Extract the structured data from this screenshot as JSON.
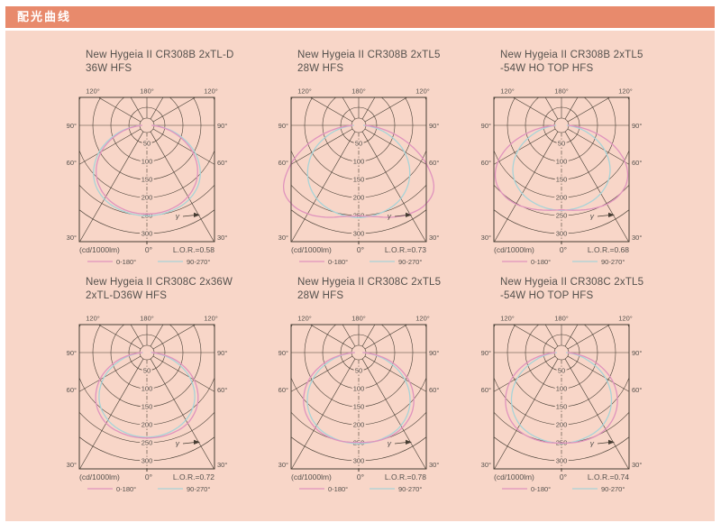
{
  "header": {
    "title": "配光曲线"
  },
  "colors": {
    "page_bg": "#f8d6c8",
    "header_bg": "#e88a6c",
    "header_text": "#ffffff",
    "grid": "#463d33",
    "text": "#55514d",
    "curve_pink": "#e093bd",
    "curve_cyan": "#a8d4d8"
  },
  "common": {
    "unit_label": "(cd/1000lm)",
    "nadir_label": "0°",
    "gamma_symbol": "γ",
    "angle_labels_top": [
      "120°",
      "180°",
      "120°"
    ],
    "angle_labels_sides": [
      "90°",
      "60°",
      "30°"
    ],
    "radial_ticks": [
      50,
      100,
      150,
      200,
      250,
      300
    ],
    "legend": [
      {
        "label": "0-180°",
        "color": "pink"
      },
      {
        "label": "90-270°",
        "color": "cyan"
      }
    ]
  },
  "chart_data": [
    {
      "type": "polar",
      "title_line1": "New Hygeia II CR308B 2xTL-D",
      "title_line2": "36W HFS",
      "lor_label": "L.O.R.=0.58",
      "lor": 0.58,
      "radial_unit": "cd/1000lm",
      "radial_range": [
        0,
        300
      ],
      "series": [
        {
          "name": "0-180°",
          "color": "pink",
          "gamma_deg": [
            0,
            15,
            30,
            45,
            60,
            75,
            90
          ],
          "values": [
            246,
            242,
            228,
            198,
            146,
            76,
            14
          ]
        },
        {
          "name": "90-270°",
          "color": "cyan",
          "gamma_deg": [
            0,
            15,
            30,
            45,
            60,
            75,
            90
          ],
          "values": [
            251,
            247,
            236,
            208,
            155,
            84,
            16
          ]
        }
      ]
    },
    {
      "type": "polar",
      "title_line1": "New Hygeia II CR308B 2xTL5",
      "title_line2": "28W HFS",
      "lor_label": "L.O.R.=0.73",
      "lor": 0.73,
      "radial_unit": "cd/1000lm",
      "radial_range": [
        0,
        300
      ],
      "series": [
        {
          "name": "0-180°",
          "color": "pink",
          "gamma_deg": [
            0,
            10,
            20,
            30,
            40,
            50,
            60,
            70,
            80,
            90
          ],
          "values": [
            251,
            257,
            271,
            283,
            287,
            272,
            218,
            148,
            75,
            18
          ]
        },
        {
          "name": "90-270°",
          "color": "cyan",
          "gamma_deg": [
            0,
            15,
            30,
            45,
            60,
            75,
            90
          ],
          "values": [
            256,
            250,
            234,
            200,
            146,
            76,
            14
          ]
        }
      ]
    },
    {
      "type": "polar",
      "title_line1": "New Hygeia II CR308B 2xTL5",
      "title_line2": "-54W HO TOP HFS",
      "lor_label": "L.O.R.=0.68",
      "lor": 0.68,
      "radial_unit": "cd/1000lm",
      "radial_range": [
        0,
        300
      ],
      "series": [
        {
          "name": "0-180°",
          "color": "pink",
          "gamma_deg": [
            0,
            10,
            20,
            30,
            40,
            50,
            60,
            70,
            80,
            90
          ],
          "values": [
            234,
            239,
            246,
            252,
            251,
            238,
            204,
            148,
            78,
            20
          ]
        },
        {
          "name": "90-270°",
          "color": "cyan",
          "gamma_deg": [
            0,
            15,
            30,
            45,
            60,
            75,
            90
          ],
          "values": [
            236,
            231,
            218,
            190,
            139,
            73,
            16
          ]
        }
      ]
    },
    {
      "type": "polar",
      "title_line1": "New Hygeia II CR308C 2x36W",
      "title_line2": "2xTL-D36W HFS",
      "lor_label": "L.O.R.=0.72",
      "lor": 0.72,
      "radial_unit": "cd/1000lm",
      "radial_range": [
        0,
        300
      ],
      "series": [
        {
          "name": "0-180°",
          "color": "pink",
          "gamma_deg": [
            0,
            15,
            30,
            45,
            60,
            75,
            90
          ],
          "values": [
            237,
            235,
            226,
            199,
            151,
            84,
            14
          ]
        },
        {
          "name": "90-270°",
          "color": "cyan",
          "gamma_deg": [
            0,
            15,
            30,
            45,
            60,
            75,
            90
          ],
          "values": [
            235,
            230,
            216,
            187,
            137,
            71,
            12
          ]
        }
      ]
    },
    {
      "type": "polar",
      "title_line1": "New Hygeia II CR308C 2xTL5",
      "title_line2": "28W HFS",
      "lor_label": "L.O.R.=0.78",
      "lor": 0.78,
      "radial_unit": "cd/1000lm",
      "radial_range": [
        0,
        300
      ],
      "series": [
        {
          "name": "0-180°",
          "color": "pink",
          "gamma_deg": [
            0,
            15,
            30,
            45,
            60,
            75,
            90
          ],
          "values": [
            249,
            250,
            241,
            214,
            163,
            90,
            12
          ]
        },
        {
          "name": "90-270°",
          "color": "cyan",
          "gamma_deg": [
            0,
            15,
            30,
            45,
            60,
            75,
            90
          ],
          "values": [
            253,
            248,
            234,
            201,
            147,
            77,
            12
          ]
        }
      ]
    },
    {
      "type": "polar",
      "title_line1": "New Hygeia II CR308C 2xTL5",
      "title_line2": "-54W HO TOP HFS",
      "lor_label": "L.O.R.=0.74",
      "lor": 0.74,
      "radial_unit": "cd/1000lm",
      "radial_range": [
        0,
        300
      ],
      "series": [
        {
          "name": "0-180°",
          "color": "pink",
          "gamma_deg": [
            0,
            15,
            30,
            45,
            60,
            75,
            90
          ],
          "values": [
            251,
            252,
            245,
            217,
            166,
            93,
            18
          ]
        },
        {
          "name": "90-270°",
          "color": "cyan",
          "gamma_deg": [
            0,
            15,
            30,
            45,
            60,
            75,
            90
          ],
          "values": [
            252,
            246,
            231,
            196,
            141,
            71,
            14
          ]
        }
      ]
    }
  ]
}
